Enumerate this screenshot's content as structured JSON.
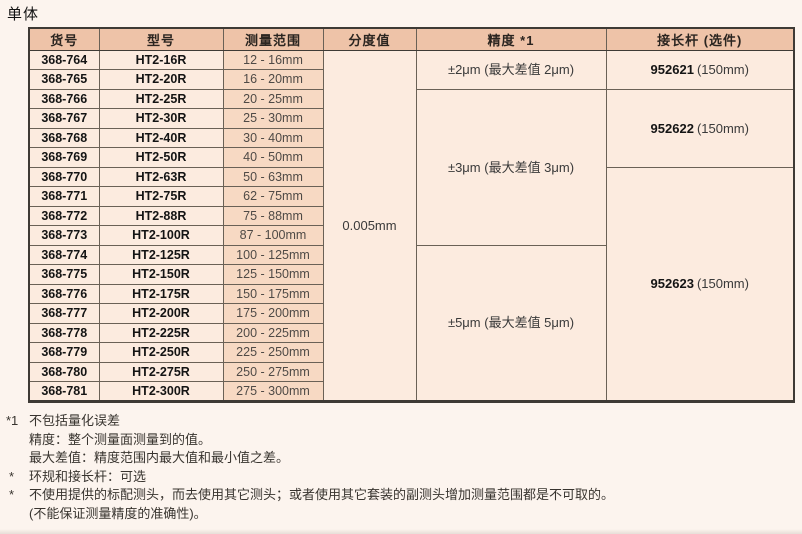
{
  "page": {
    "title": "单体"
  },
  "colors": {
    "page_bg": "#fcf4ee",
    "header_bg": "#eec3a8",
    "cell_bg": "#fcebdf",
    "range_bg": "#f7d9c3",
    "border_dark": "#3e3a35",
    "border_cell": "#6a6156"
  },
  "table": {
    "headers": [
      "货号",
      "型号",
      "测量范围",
      "分度值",
      "精度 *1",
      "接长杆 (选件)"
    ],
    "graduation": "0.005mm",
    "rows": [
      {
        "code": "368-764",
        "model": "HT2-16R",
        "range": "12 - 16mm"
      },
      {
        "code": "368-765",
        "model": "HT2-20R",
        "range": "16 - 20mm"
      },
      {
        "code": "368-766",
        "model": "HT2-25R",
        "range": "20 - 25mm"
      },
      {
        "code": "368-767",
        "model": "HT2-30R",
        "range": "25 - 30mm"
      },
      {
        "code": "368-768",
        "model": "HT2-40R",
        "range": "30 - 40mm"
      },
      {
        "code": "368-769",
        "model": "HT2-50R",
        "range": "40 - 50mm"
      },
      {
        "code": "368-770",
        "model": "HT2-63R",
        "range": "50 - 63mm"
      },
      {
        "code": "368-771",
        "model": "HT2-75R",
        "range": "62 - 75mm"
      },
      {
        "code": "368-772",
        "model": "HT2-88R",
        "range": "75 - 88mm"
      },
      {
        "code": "368-773",
        "model": "HT2-100R",
        "range": "87 - 100mm"
      },
      {
        "code": "368-774",
        "model": "HT2-125R",
        "range": "100 - 125mm"
      },
      {
        "code": "368-775",
        "model": "HT2-150R",
        "range": "125 - 150mm"
      },
      {
        "code": "368-776",
        "model": "HT2-175R",
        "range": "150 - 175mm"
      },
      {
        "code": "368-777",
        "model": "HT2-200R",
        "range": "175 - 200mm"
      },
      {
        "code": "368-778",
        "model": "HT2-225R",
        "range": "200 - 225mm"
      },
      {
        "code": "368-779",
        "model": "HT2-250R",
        "range": "225 - 250mm"
      },
      {
        "code": "368-780",
        "model": "HT2-275R",
        "range": "250 - 275mm"
      },
      {
        "code": "368-781",
        "model": "HT2-300R",
        "range": "275 - 300mm"
      }
    ],
    "accuracy_groups": [
      {
        "label": "±2μm (最大差值 2μm)",
        "rows": 2
      },
      {
        "label": "±3μm (最大差值 3μm)",
        "rows": 8
      },
      {
        "label": "±5μm (最大差值 5μm)",
        "rows": 8
      }
    ],
    "rod_groups": [
      {
        "number": "952621",
        "size": "(150mm)",
        "rows": 2
      },
      {
        "number": "952622",
        "size": "(150mm)",
        "rows": 4
      },
      {
        "number": "952623",
        "size": "(150mm)",
        "rows": 12
      }
    ]
  },
  "footnotes": [
    {
      "marker": "*1",
      "lines": [
        "不包括量化误差"
      ]
    },
    {
      "marker": "",
      "lines": [
        "精度：整个测量面测量到的值。"
      ]
    },
    {
      "marker": "",
      "lines": [
        "最大差值：精度范围内最大值和最小值之差。"
      ]
    },
    {
      "marker": "*",
      "lines": [
        "环规和接长杆：可选"
      ]
    },
    {
      "marker": "*",
      "lines": [
        "不使用提供的标配测头，而去使用其它测头；或者使用其它套装的副测头增加测量范围都是不可取的。",
        "(不能保证测量精度的准确性)。"
      ]
    }
  ]
}
